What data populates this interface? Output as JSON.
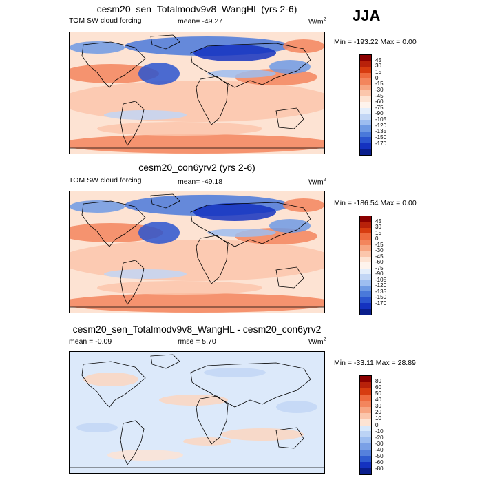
{
  "season": "JJA",
  "colors": {
    "pos": [
      "#67000d",
      "#a50f15",
      "#cb181d",
      "#ef3b2c",
      "#fb6a4a",
      "#fc9272",
      "#fcbba1",
      "#fee0d2"
    ],
    "neg": [
      "#deebf7",
      "#c6dbef",
      "#9ecae1",
      "#6baed6",
      "#4292c6",
      "#2171b5",
      "#08519c",
      "#08306b"
    ]
  },
  "panels": [
    {
      "title": "cesm20_sen_Totalmodv9v8_WangHL (yrs 2-6)",
      "variable": "TOM SW cloud forcing",
      "stat_label": "mean= -49.27",
      "units_base": "W/m",
      "units_exp": "2",
      "minmax": "Min = -193.22 Max =   0.00",
      "levels": [
        "45",
        "30",
        "15",
        "0",
        "-15",
        "-30",
        "-45",
        "-60",
        "-75",
        "-90",
        "-105",
        "-120",
        "-135",
        "-150",
        "-170"
      ],
      "colors": [
        "#8b0000",
        "#b8210a",
        "#d73c10",
        "#ee6a3e",
        "#f3855d",
        "#f7a582",
        "#fbc6ac",
        "#fde3d3",
        "#fef3ec",
        "#e4eefb",
        "#c2d6f5",
        "#9dbdf0",
        "#6f9ae4",
        "#4a79da",
        "#2b55cf",
        "#1432c0",
        "#0a1e8c"
      ]
    },
    {
      "title": "cesm20_con6yrv2 (yrs 2-6)",
      "variable": "TOM SW cloud forcing",
      "stat_label": "mean= -49.18",
      "units_base": "W/m",
      "units_exp": "2",
      "minmax": "Min = -186.54 Max =   0.00",
      "levels": [
        "45",
        "30",
        "15",
        "0",
        "-15",
        "-30",
        "-45",
        "-60",
        "-75",
        "-90",
        "-105",
        "-120",
        "-135",
        "-150",
        "-170"
      ],
      "colors": [
        "#8b0000",
        "#b8210a",
        "#d73c10",
        "#ee6a3e",
        "#f3855d",
        "#f7a582",
        "#fbc6ac",
        "#fde3d3",
        "#fef3ec",
        "#e4eefb",
        "#c2d6f5",
        "#9dbdf0",
        "#6f9ae4",
        "#4a79da",
        "#2b55cf",
        "#1432c0",
        "#0a1e8c"
      ]
    },
    {
      "title": "cesm20_sen_Totalmodv9v8_WangHL - cesm20_con6yrv2",
      "mean_label": "mean =  -0.09",
      "stat_label": "rmse =   5.70",
      "units_base": "W/m",
      "units_exp": "2",
      "minmax": "Min = -33.11 Max =  28.89",
      "levels": [
        "80",
        "60",
        "50",
        "40",
        "30",
        "20",
        "10",
        "0",
        "-10",
        "-20",
        "-30",
        "-40",
        "-50",
        "-60",
        "-80"
      ],
      "colors": [
        "#8b0000",
        "#b8210a",
        "#d73c10",
        "#ee6a3e",
        "#f3855d",
        "#f7a582",
        "#fbc6ac",
        "#fde3d3",
        "#d8e8fb",
        "#bcd3f5",
        "#9dbdf0",
        "#7aa0e6",
        "#5581dc",
        "#2f5cd0",
        "#1432c0",
        "#0a1e8c"
      ]
    }
  ],
  "chart_data": [
    {
      "type": "heatmap",
      "title": "cesm20_sen_Totalmodv9v8_WangHL (yrs 2-6)",
      "subtitle": "TOM SW cloud forcing",
      "units": "W/m2",
      "mean": -49.27,
      "min": -193.22,
      "max": 0.0,
      "colorbar_levels": [
        45,
        30,
        15,
        0,
        -15,
        -30,
        -45,
        -60,
        -75,
        -90,
        -105,
        -120,
        -135,
        -150,
        -170
      ]
    },
    {
      "type": "heatmap",
      "title": "cesm20_con6yrv2 (yrs 2-6)",
      "subtitle": "TOM SW cloud forcing",
      "units": "W/m2",
      "mean": -49.18,
      "min": -186.54,
      "max": 0.0,
      "colorbar_levels": [
        45,
        30,
        15,
        0,
        -15,
        -30,
        -45,
        -60,
        -75,
        -90,
        -105,
        -120,
        -135,
        -150,
        -170
      ]
    },
    {
      "type": "heatmap",
      "title": "cesm20_sen_Totalmodv9v8_WangHL - cesm20_con6yrv2",
      "units": "W/m2",
      "mean": -0.09,
      "rmse": 5.7,
      "min": -33.11,
      "max": 28.89,
      "colorbar_levels": [
        80,
        60,
        50,
        40,
        30,
        20,
        10,
        0,
        -10,
        -20,
        -30,
        -40,
        -50,
        -60,
        -80
      ]
    }
  ]
}
